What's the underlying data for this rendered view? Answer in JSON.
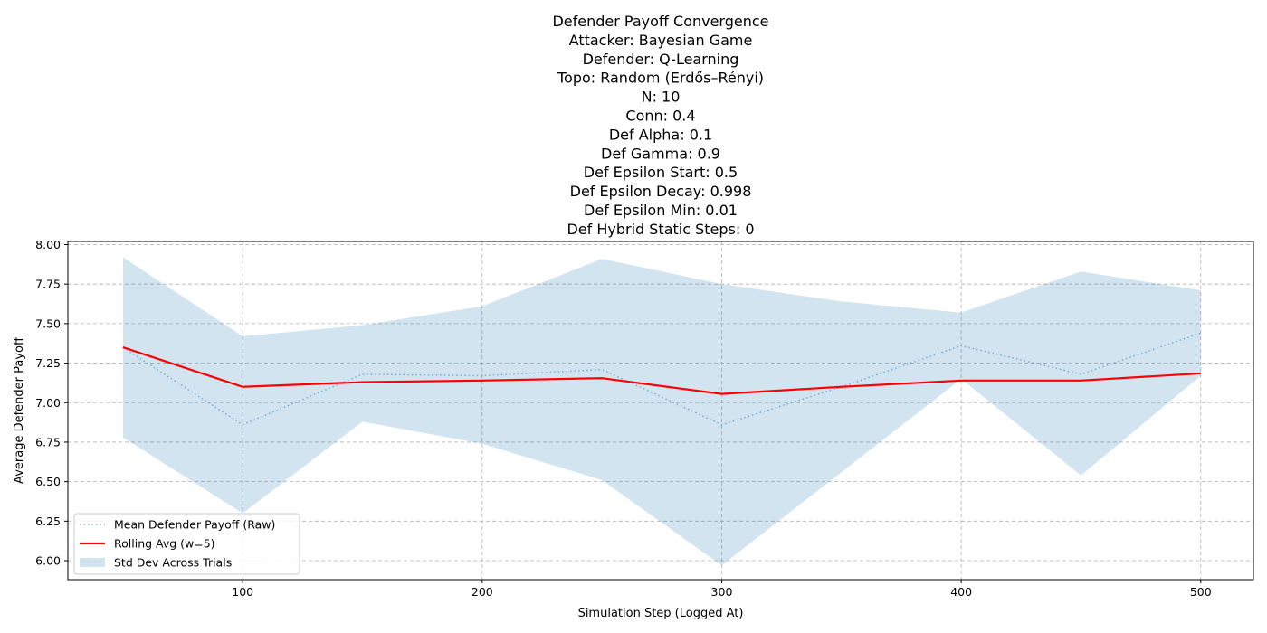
{
  "chart_data": {
    "type": "line",
    "title_lines": [
      "Defender Payoff Convergence",
      "Attacker: Bayesian Game",
      "Defender: Q-Learning",
      "Topo: Random (Erdős–Rényi)",
      "N: 10",
      "Conn: 0.4",
      "Def Alpha: 0.1",
      "Def Gamma: 0.9",
      "Def Epsilon Start: 0.5",
      "Def Epsilon Decay: 0.998",
      "Def Epsilon Min: 0.01",
      "Def Hybrid Static Steps: 0"
    ],
    "xlabel": "Simulation Step (Logged At)",
    "ylabel": "Average Defender Payoff",
    "xlim": [
      27,
      522
    ],
    "ylim": [
      5.88,
      8.02
    ],
    "xticks": [
      100,
      200,
      300,
      400,
      500
    ],
    "yticks": [
      6.0,
      6.25,
      6.5,
      6.75,
      7.0,
      7.25,
      7.5,
      7.75,
      8.0
    ],
    "ytick_labels": [
      "6.00",
      "6.25",
      "6.50",
      "6.75",
      "7.00",
      "7.25",
      "7.50",
      "7.75",
      "8.00"
    ],
    "grid": true,
    "legend_position": "lower-left",
    "x": [
      50,
      100,
      150,
      200,
      250,
      300,
      350,
      400,
      450,
      500
    ],
    "series": [
      {
        "name": "Mean Defender Payoff (Raw)",
        "style": "dotted",
        "color": "#1f77b4",
        "values": [
          7.35,
          6.86,
          7.18,
          7.17,
          7.21,
          6.86,
          7.1,
          7.36,
          7.18,
          7.44
        ]
      },
      {
        "name": "Rolling Avg (w=5)",
        "style": "solid",
        "color": "#ff0000",
        "values": [
          7.35,
          7.1,
          7.13,
          7.14,
          7.155,
          7.055,
          7.1,
          7.14,
          7.14,
          7.185
        ]
      }
    ],
    "band": {
      "name": "Std Dev Across Trials",
      "color": "#1f77b4",
      "opacity": 0.2,
      "upper": [
        7.92,
        7.42,
        7.49,
        7.61,
        7.91,
        7.75,
        7.64,
        7.57,
        7.83,
        7.71
      ],
      "lower": [
        6.78,
        6.3,
        6.88,
        6.74,
        6.51,
        5.97,
        6.56,
        7.15,
        6.54,
        7.17
      ]
    }
  }
}
